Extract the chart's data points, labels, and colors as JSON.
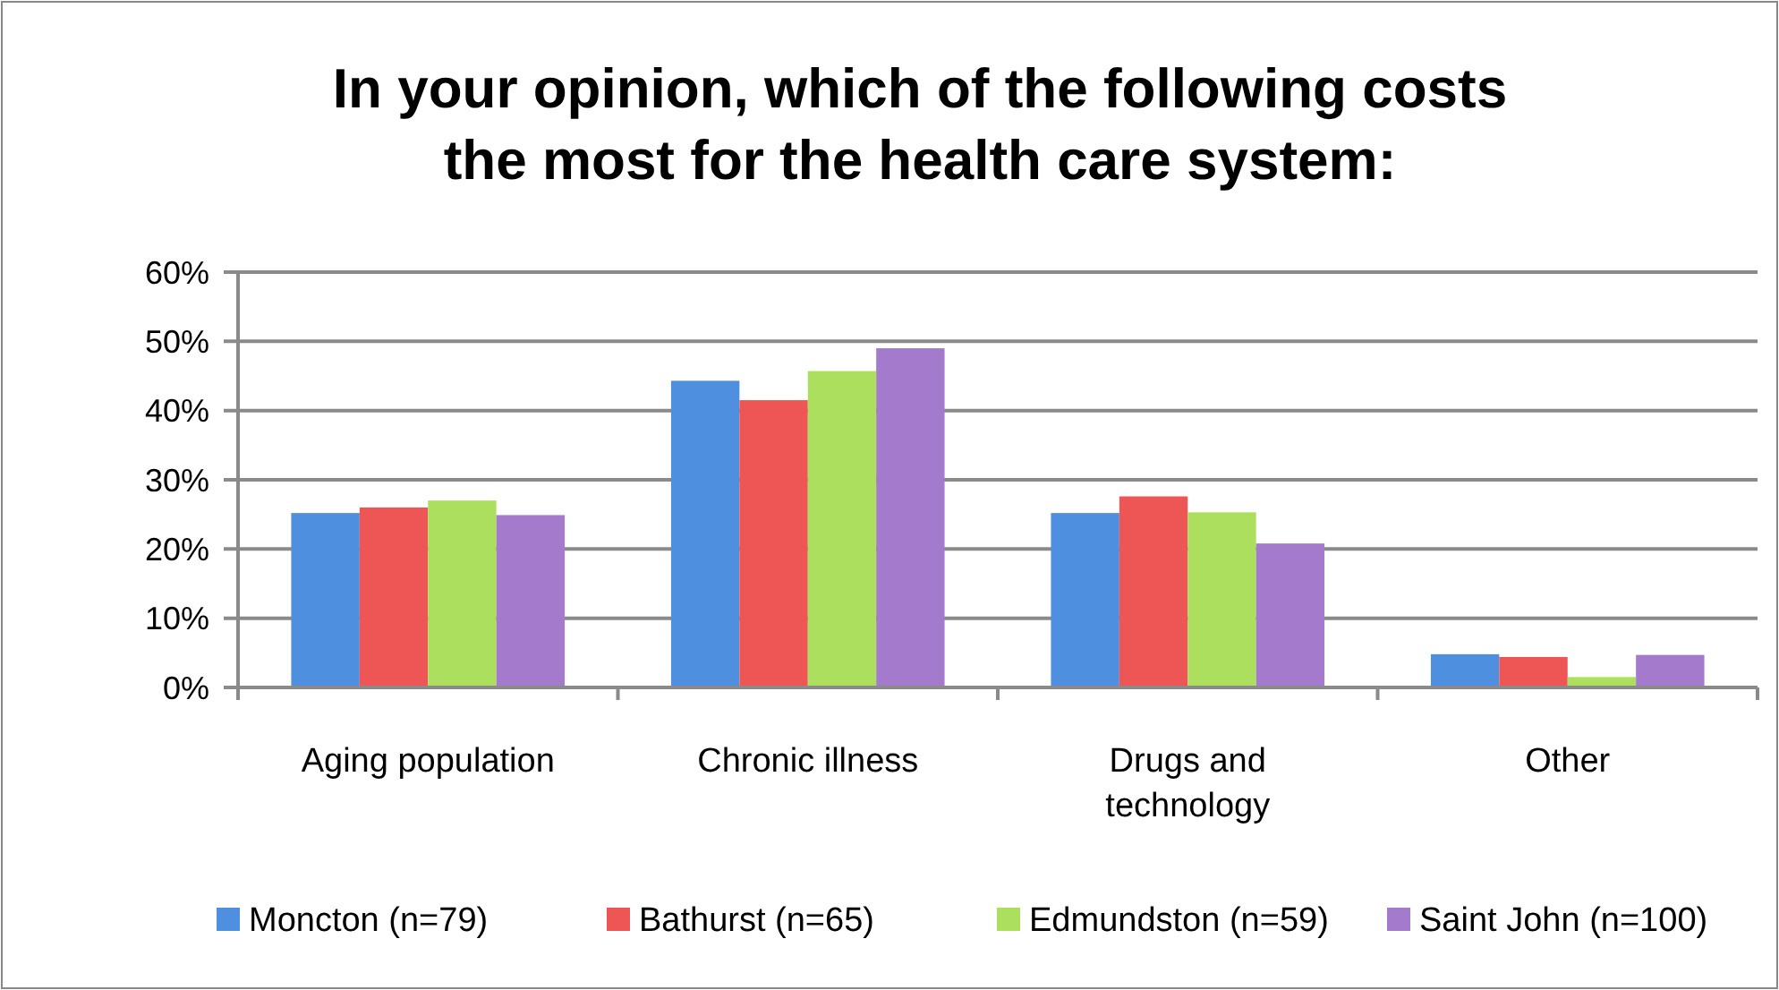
{
  "chart_data": {
    "type": "bar",
    "title": "In your opinion, which of the following costs\nthe most for the health care system:",
    "categories": [
      "Aging population",
      "Chronic illness",
      "Drugs and\ntechnology",
      "Other"
    ],
    "series": [
      {
        "name": "Moncton (n=79)",
        "color": "#4f8fe0",
        "values": [
          25.2,
          44.3,
          25.2,
          4.8
        ]
      },
      {
        "name": "Bathurst (n=65)",
        "color": "#ee5555",
        "values": [
          26.0,
          41.5,
          27.6,
          4.4
        ]
      },
      {
        "name": "Edmundston (n=59)",
        "color": "#addf5f",
        "values": [
          27.0,
          45.7,
          25.3,
          1.5
        ]
      },
      {
        "name": "Saint John (n=100)",
        "color": "#a47bcc",
        "values": [
          24.9,
          49.0,
          20.8,
          4.7
        ]
      }
    ],
    "ylim": [
      0,
      60
    ],
    "yticks": [
      {
        "value": 0,
        "label": "0%"
      },
      {
        "value": 10,
        "label": "10%"
      },
      {
        "value": 20,
        "label": "20%"
      },
      {
        "value": 30,
        "label": "30%"
      },
      {
        "value": 40,
        "label": "40%"
      },
      {
        "value": 50,
        "label": "50%"
      },
      {
        "value": 60,
        "label": "60%"
      }
    ],
    "grid": "y",
    "legend": "bottom"
  }
}
